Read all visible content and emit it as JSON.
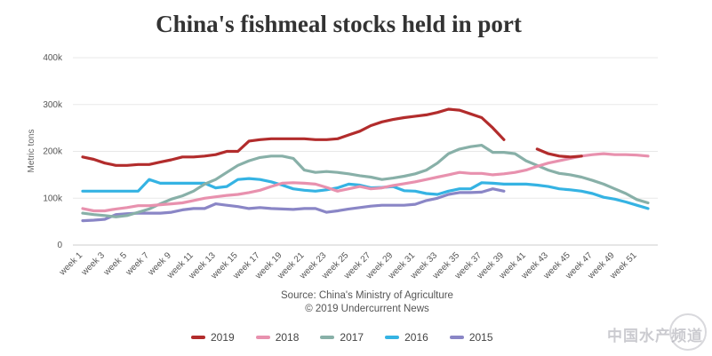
{
  "chart_data": {
    "type": "line",
    "title": "China's fishmeal stocks held in port",
    "xlabel": "",
    "ylabel": "Metric tons",
    "ylim": [
      0,
      400000
    ],
    "yticks": [
      0,
      100000,
      200000,
      300000,
      400000
    ],
    "ytick_labels": [
      "0",
      "100k",
      "200k",
      "300k",
      "400k"
    ],
    "xtick_labels": [
      "week 1",
      "week 3",
      "week 5",
      "week 7",
      "week 9",
      "week 11",
      "week 13",
      "week 15",
      "week 17",
      "week 19",
      "week 21",
      "week 23",
      "week 25",
      "week 27",
      "week 29",
      "week 31",
      "week 33",
      "week 35",
      "week 37",
      "week 39",
      "week 41",
      "week 43",
      "week 45",
      "week 47",
      "week 49",
      "week 51"
    ],
    "grid": true,
    "legend_position": "bottom",
    "series": [
      {
        "name": "2019",
        "color": "#b22c2c",
        "points": [
          [
            1,
            188
          ],
          [
            2,
            183
          ],
          [
            3,
            175
          ],
          [
            4,
            170
          ],
          [
            5,
            170
          ],
          [
            6,
            172
          ],
          [
            7,
            172
          ],
          [
            8,
            177
          ],
          [
            9,
            182
          ],
          [
            10,
            188
          ],
          [
            11,
            188
          ],
          [
            12,
            190
          ],
          [
            13,
            193
          ],
          [
            14,
            200
          ],
          [
            15,
            200
          ],
          [
            16,
            222
          ],
          [
            17,
            225
          ],
          [
            18,
            227
          ],
          [
            19,
            227
          ],
          [
            20,
            227
          ],
          [
            21,
            227
          ],
          [
            22,
            225
          ],
          [
            23,
            225
          ],
          [
            24,
            227
          ],
          [
            25,
            235
          ],
          [
            26,
            243
          ],
          [
            27,
            255
          ],
          [
            28,
            263
          ],
          [
            29,
            268
          ],
          [
            30,
            272
          ],
          [
            31,
            275
          ],
          [
            32,
            278
          ],
          [
            33,
            283
          ],
          [
            34,
            290
          ],
          [
            35,
            288
          ],
          [
            36,
            280
          ],
          [
            37,
            272
          ],
          [
            38,
            250
          ],
          [
            39,
            225
          ],
          [
            42,
            205
          ],
          [
            43,
            195
          ],
          [
            44,
            190
          ],
          [
            45,
            188
          ],
          [
            46,
            190
          ]
        ]
      },
      {
        "name": "2018",
        "color": "#e891ae",
        "points": [
          [
            1,
            78
          ],
          [
            2,
            73
          ],
          [
            3,
            73
          ],
          [
            4,
            77
          ],
          [
            5,
            80
          ],
          [
            6,
            84
          ],
          [
            7,
            84
          ],
          [
            8,
            86
          ],
          [
            9,
            88
          ],
          [
            10,
            90
          ],
          [
            11,
            95
          ],
          [
            12,
            100
          ],
          [
            13,
            103
          ],
          [
            14,
            106
          ],
          [
            15,
            108
          ],
          [
            16,
            112
          ],
          [
            17,
            117
          ],
          [
            18,
            125
          ],
          [
            19,
            132
          ],
          [
            20,
            133
          ],
          [
            21,
            132
          ],
          [
            22,
            130
          ],
          [
            23,
            123
          ],
          [
            24,
            115
          ],
          [
            25,
            120
          ],
          [
            26,
            125
          ],
          [
            27,
            120
          ],
          [
            28,
            122
          ],
          [
            29,
            127
          ],
          [
            30,
            131
          ],
          [
            31,
            135
          ],
          [
            32,
            140
          ],
          [
            33,
            145
          ],
          [
            34,
            150
          ],
          [
            35,
            155
          ],
          [
            36,
            153
          ],
          [
            37,
            153
          ],
          [
            38,
            150
          ],
          [
            39,
            152
          ],
          [
            40,
            155
          ],
          [
            41,
            160
          ],
          [
            42,
            168
          ],
          [
            43,
            175
          ],
          [
            44,
            180
          ],
          [
            45,
            185
          ],
          [
            46,
            190
          ],
          [
            47,
            193
          ],
          [
            48,
            195
          ],
          [
            49,
            193
          ],
          [
            50,
            193
          ],
          [
            51,
            192
          ],
          [
            52,
            190
          ]
        ]
      },
      {
        "name": "2017",
        "color": "#88b0a8",
        "points": [
          [
            1,
            68
          ],
          [
            2,
            65
          ],
          [
            3,
            63
          ],
          [
            4,
            60
          ],
          [
            5,
            63
          ],
          [
            6,
            70
          ],
          [
            7,
            77
          ],
          [
            8,
            88
          ],
          [
            9,
            98
          ],
          [
            10,
            105
          ],
          [
            11,
            115
          ],
          [
            12,
            130
          ],
          [
            13,
            140
          ],
          [
            14,
            155
          ],
          [
            15,
            170
          ],
          [
            16,
            180
          ],
          [
            17,
            187
          ],
          [
            18,
            190
          ],
          [
            19,
            190
          ],
          [
            20,
            185
          ],
          [
            21,
            160
          ],
          [
            22,
            155
          ],
          [
            23,
            157
          ],
          [
            24,
            155
          ],
          [
            25,
            152
          ],
          [
            26,
            148
          ],
          [
            27,
            145
          ],
          [
            28,
            140
          ],
          [
            29,
            143
          ],
          [
            30,
            147
          ],
          [
            31,
            152
          ],
          [
            32,
            160
          ],
          [
            33,
            175
          ],
          [
            34,
            195
          ],
          [
            35,
            205
          ],
          [
            36,
            210
          ],
          [
            37,
            213
          ],
          [
            38,
            198
          ],
          [
            39,
            198
          ],
          [
            40,
            195
          ],
          [
            41,
            180
          ],
          [
            42,
            170
          ],
          [
            43,
            160
          ],
          [
            44,
            153
          ],
          [
            45,
            150
          ],
          [
            46,
            145
          ],
          [
            47,
            138
          ],
          [
            48,
            130
          ],
          [
            49,
            120
          ],
          [
            50,
            110
          ],
          [
            51,
            97
          ],
          [
            52,
            90
          ]
        ]
      },
      {
        "name": "2016",
        "color": "#35b3e3",
        "points": [
          [
            1,
            115
          ],
          [
            2,
            115
          ],
          [
            3,
            115
          ],
          [
            4,
            115
          ],
          [
            5,
            115
          ],
          [
            6,
            115
          ],
          [
            7,
            140
          ],
          [
            8,
            132
          ],
          [
            9,
            132
          ],
          [
            10,
            132
          ],
          [
            11,
            132
          ],
          [
            12,
            132
          ],
          [
            13,
            122
          ],
          [
            14,
            125
          ],
          [
            15,
            140
          ],
          [
            16,
            142
          ],
          [
            17,
            140
          ],
          [
            18,
            135
          ],
          [
            19,
            128
          ],
          [
            20,
            120
          ],
          [
            21,
            117
          ],
          [
            22,
            115
          ],
          [
            23,
            118
          ],
          [
            24,
            122
          ],
          [
            25,
            130
          ],
          [
            26,
            128
          ],
          [
            27,
            122
          ],
          [
            28,
            123
          ],
          [
            29,
            125
          ],
          [
            30,
            116
          ],
          [
            31,
            115
          ],
          [
            32,
            110
          ],
          [
            33,
            108
          ],
          [
            34,
            115
          ],
          [
            35,
            120
          ],
          [
            36,
            120
          ],
          [
            37,
            133
          ],
          [
            38,
            132
          ],
          [
            39,
            130
          ],
          [
            40,
            130
          ],
          [
            41,
            130
          ],
          [
            42,
            128
          ],
          [
            43,
            125
          ],
          [
            44,
            120
          ],
          [
            45,
            118
          ],
          [
            46,
            115
          ],
          [
            47,
            110
          ],
          [
            48,
            102
          ],
          [
            49,
            98
          ],
          [
            50,
            92
          ],
          [
            51,
            85
          ],
          [
            52,
            78
          ]
        ]
      },
      {
        "name": "2015",
        "color": "#8a86c6",
        "points": [
          [
            1,
            52
          ],
          [
            2,
            53
          ],
          [
            3,
            55
          ],
          [
            4,
            65
          ],
          [
            5,
            67
          ],
          [
            6,
            68
          ],
          [
            7,
            68
          ],
          [
            8,
            68
          ],
          [
            9,
            70
          ],
          [
            10,
            75
          ],
          [
            11,
            78
          ],
          [
            12,
            78
          ],
          [
            13,
            88
          ],
          [
            14,
            85
          ],
          [
            15,
            82
          ],
          [
            16,
            78
          ],
          [
            17,
            80
          ],
          [
            18,
            78
          ],
          [
            19,
            77
          ],
          [
            20,
            76
          ],
          [
            21,
            78
          ],
          [
            22,
            78
          ],
          [
            23,
            70
          ],
          [
            24,
            73
          ],
          [
            25,
            77
          ],
          [
            26,
            80
          ],
          [
            27,
            83
          ],
          [
            28,
            85
          ],
          [
            29,
            85
          ],
          [
            30,
            85
          ],
          [
            31,
            87
          ],
          [
            32,
            95
          ],
          [
            33,
            100
          ],
          [
            34,
            108
          ],
          [
            35,
            112
          ],
          [
            36,
            112
          ],
          [
            37,
            113
          ],
          [
            38,
            120
          ],
          [
            39,
            115
          ]
        ]
      }
    ]
  },
  "source": {
    "line1": "Source: China's Ministry of Agriculture",
    "line2": "© 2019 Undercurrent News"
  },
  "watermark": "中国水产频道"
}
